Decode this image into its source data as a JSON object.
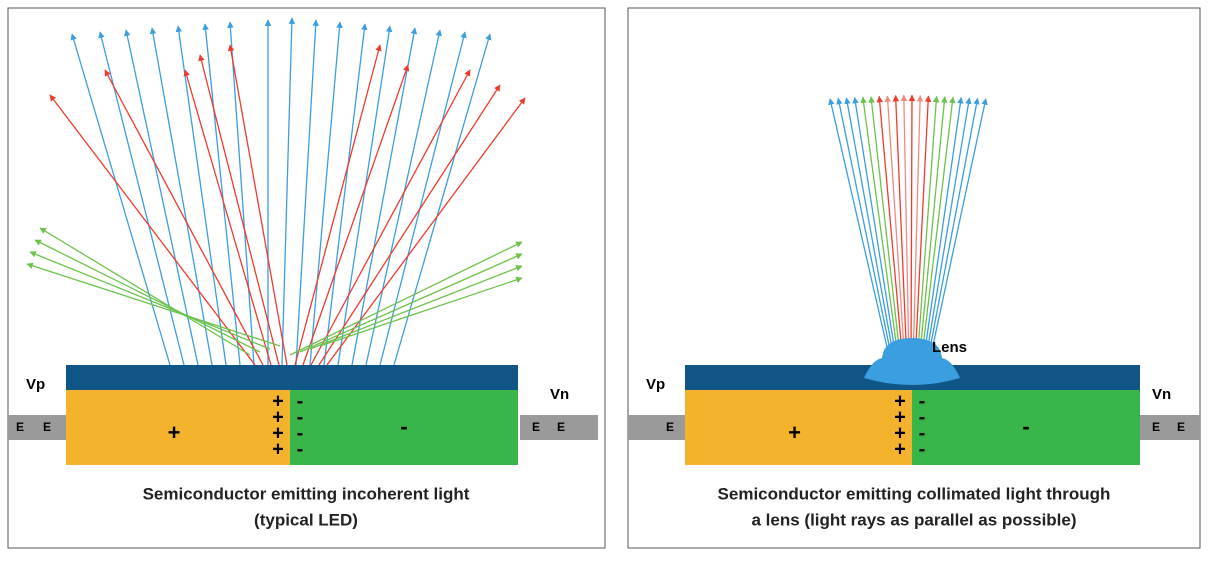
{
  "panels": [
    {
      "left_terminal": "Vp",
      "right_terminal": "Vn",
      "left_electrode": [
        "E",
        "E"
      ],
      "right_electrode": [
        "E",
        "E"
      ],
      "p_region": "+",
      "n_region": "-",
      "junction_plus": [
        "+",
        "+",
        "+",
        "+"
      ],
      "junction_minus": [
        "-",
        "-",
        "-",
        "-"
      ],
      "caption": [
        "Semiconductor emitting incoherent light",
        "(typical LED)"
      ]
    },
    {
      "left_terminal": "Vp",
      "right_terminal": "Vn",
      "left_electrode": [
        "E"
      ],
      "right_electrode": [
        "E",
        "E"
      ],
      "p_region": "+",
      "n_region": "-",
      "junction_plus": [
        "+",
        "+",
        "+",
        "+"
      ],
      "junction_minus": [
        "-",
        "-",
        "-",
        "-"
      ],
      "lens": "Lens",
      "caption": [
        "Semiconductor emitting collimated light through",
        "a lens (light rays as parallel as possible)"
      ]
    }
  ]
}
